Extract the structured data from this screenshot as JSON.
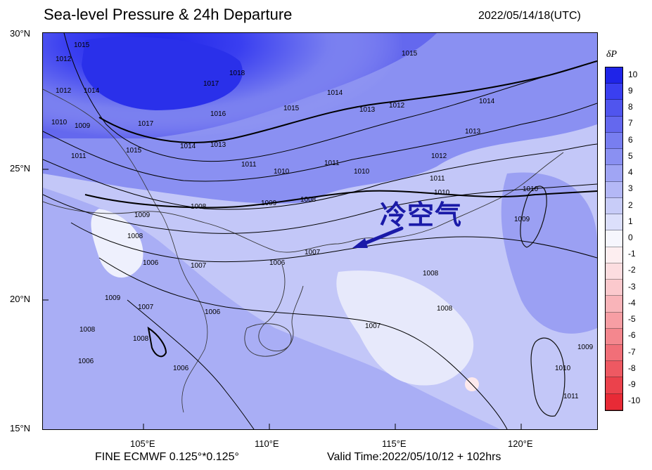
{
  "header": {
    "title": "Sea-level Pressure & 24h Departure",
    "valid_datetime": "2022/05/14/18(UTC)"
  },
  "axes": {
    "lat_labels": [
      "30°N",
      "25°N",
      "20°N",
      "15°N"
    ],
    "lon_labels": [
      "105°E",
      "110°E",
      "115°E",
      "120°E"
    ]
  },
  "footer": {
    "model": "FINE ECMWF 0.125°*0.125°",
    "valid_time": "Valid Time:2022/05/10/12 + 102hrs"
  },
  "colorbar": {
    "title": "δP",
    "levels": [
      "10",
      "9",
      "8",
      "7",
      "6",
      "5",
      "4",
      "3",
      "2",
      "1",
      "0",
      "-1",
      "-2",
      "-3",
      "-4",
      "-5",
      "-6",
      "-7",
      "-8",
      "-9",
      "-10"
    ],
    "colors": [
      "#1f24e8",
      "#3a3ff0",
      "#5055ee",
      "#6468ee",
      "#787ef0",
      "#8a90f2",
      "#a0a5f4",
      "#b4b8f6",
      "#c8ccf8",
      "#dcdffb",
      "#f6f6fd",
      "#fdeef0",
      "#fcdde0",
      "#fbc9cd",
      "#f9b4b9",
      "#f79ea4",
      "#f4878e",
      "#f16f78",
      "#ee5962",
      "#eb424c",
      "#e82a36"
    ]
  },
  "annotation": {
    "label": "冷空气",
    "arrow_color": "#1a1aa8"
  },
  "isobar_labels": [
    {
      "text": "1015"
    },
    {
      "text": "1012"
    },
    {
      "text": "1012"
    },
    {
      "text": "1010"
    },
    {
      "text": "1009"
    },
    {
      "text": "1014"
    },
    {
      "text": "1017"
    },
    {
      "text": "1018"
    },
    {
      "text": "1016"
    },
    {
      "text": "1017"
    },
    {
      "text": "1015"
    },
    {
      "text": "1015"
    },
    {
      "text": "1014"
    },
    {
      "text": "1013"
    },
    {
      "text": "1012"
    },
    {
      "text": "1015"
    },
    {
      "text": "1014"
    },
    {
      "text": "1013"
    },
    {
      "text": "1014"
    },
    {
      "text": "1013"
    },
    {
      "text": "1012"
    },
    {
      "text": "1011"
    },
    {
      "text": "1010"
    },
    {
      "text": "1011"
    },
    {
      "text": "1010"
    },
    {
      "text": "1011"
    },
    {
      "text": "1009"
    },
    {
      "text": "1008"
    },
    {
      "text": "1009"
    },
    {
      "text": "1008"
    },
    {
      "text": "1008"
    },
    {
      "text": "1007"
    },
    {
      "text": "1006"
    },
    {
      "text": "1006"
    },
    {
      "text": "1009"
    },
    {
      "text": "1007"
    },
    {
      "text": "1008"
    },
    {
      "text": "1008"
    },
    {
      "text": "1006"
    },
    {
      "text": "1006"
    },
    {
      "text": "1007"
    },
    {
      "text": "1008"
    },
    {
      "text": "1008"
    },
    {
      "text": "1007"
    },
    {
      "text": "1010"
    },
    {
      "text": "1009"
    },
    {
      "text": "1010"
    },
    {
      "text": "1011"
    },
    {
      "text": "1009"
    },
    {
      "text": "1010"
    },
    {
      "text": "1006"
    },
    {
      "text": "1011"
    }
  ]
}
